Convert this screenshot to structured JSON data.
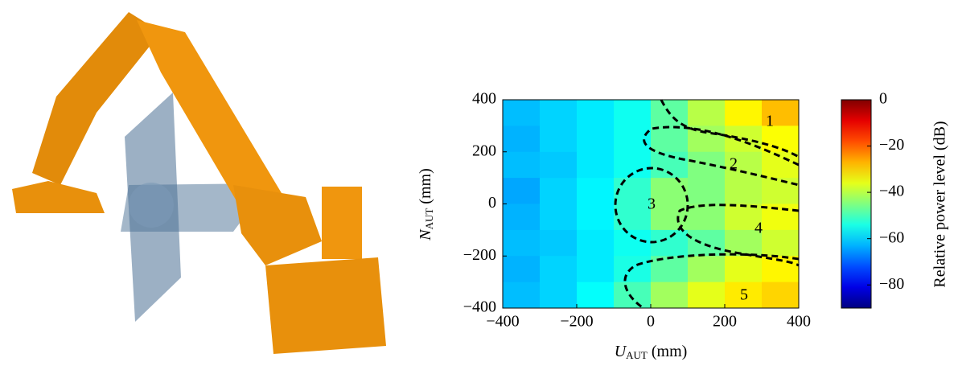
{
  "chart_data": {
    "type": "heatmap",
    "xlabel": "U",
    "xlabel_subscript": "AUT",
    "xlabel_unit": "(mm)",
    "ylabel": "N",
    "ylabel_subscript": "AUT",
    "ylabel_unit": "(mm)",
    "colorbar_label": "Relative power level (dB)",
    "x": [
      -350,
      -250,
      -150,
      -50,
      50,
      150,
      250,
      350
    ],
    "y": [
      350,
      250,
      150,
      50,
      -50,
      -150,
      -250,
      -350
    ],
    "z": [
      [
        -62,
        -60,
        -58,
        -55,
        -48,
        -40,
        -33,
        -28
      ],
      [
        -63,
        -60,
        -58,
        -55,
        -48,
        -42,
        -38,
        -34
      ],
      [
        -62,
        -61,
        -58,
        -55,
        -50,
        -45,
        -40,
        -36
      ],
      [
        -64,
        -60,
        -57,
        -52,
        -44,
        -45,
        -40,
        -38
      ],
      [
        -63,
        -60,
        -57,
        -52,
        -44,
        -44,
        -38,
        -35
      ],
      [
        -62,
        -61,
        -58,
        -55,
        -52,
        -48,
        -42,
        -38
      ],
      [
        -63,
        -60,
        -58,
        -54,
        -48,
        -42,
        -36,
        -33
      ],
      [
        -62,
        -60,
        -56,
        -50,
        -42,
        -36,
        -32,
        -30
      ]
    ],
    "xlim": [
      -400,
      400
    ],
    "ylim": [
      -400,
      400
    ],
    "zlim": [
      -90,
      0
    ],
    "xticks": [
      {
        "value": -400,
        "label": "−400"
      },
      {
        "value": -200,
        "label": "−200"
      },
      0,
      200,
      400
    ],
    "yticks": [
      400,
      200,
      0,
      {
        "value": -200,
        "label": "−200"
      },
      {
        "value": -400,
        "label": "−400"
      }
    ],
    "zticks": [
      0,
      {
        "value": -20,
        "label": "−20"
      },
      {
        "value": -40,
        "label": "−40"
      },
      {
        "value": -60,
        "label": "−60"
      },
      {
        "value": -80,
        "label": "−80"
      }
    ],
    "colormap": "jet",
    "annotations": [
      "1",
      "2",
      "3",
      "4",
      "5"
    ]
  }
}
